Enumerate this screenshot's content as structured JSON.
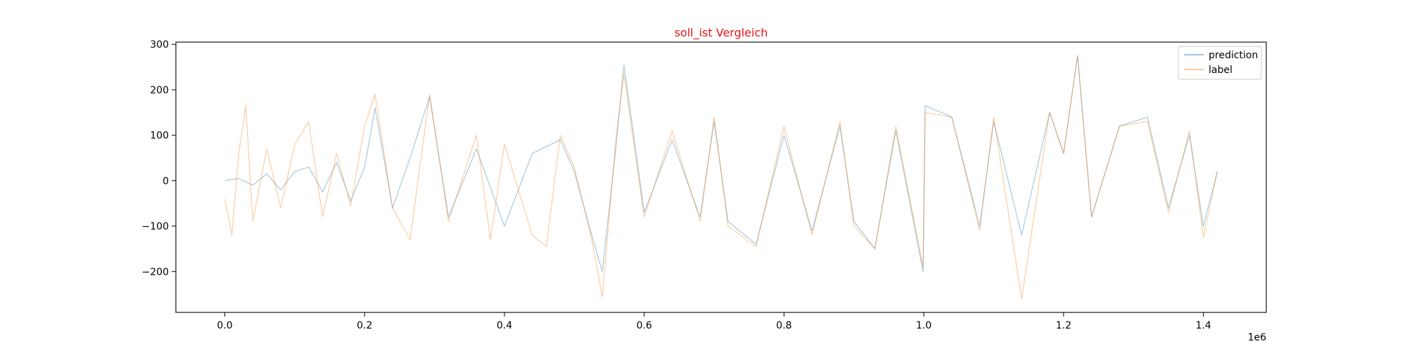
{
  "chart_data": {
    "type": "line",
    "title": "soll_ist Vergleich",
    "title_color": "#e8141b",
    "xlabel": "",
    "ylabel": "",
    "x_offset_label": "1e6",
    "xlim": [
      -0.07,
      1.49
    ],
    "ylim": [
      -290,
      305
    ],
    "xticks": [
      0.0,
      0.2,
      0.4,
      0.6,
      0.8,
      1.0,
      1.2,
      1.4
    ],
    "xtick_labels": [
      "0.0",
      "0.2",
      "0.4",
      "0.6",
      "0.8",
      "1.0",
      "1.2",
      "1.4"
    ],
    "yticks": [
      -200,
      -100,
      0,
      100,
      200,
      300
    ],
    "ytick_labels": [
      "−200",
      "−100",
      "0",
      "100",
      "200",
      "300"
    ],
    "grid": false,
    "legend": {
      "position": "upper-right",
      "entries": [
        "prediction",
        "label"
      ]
    },
    "series": [
      {
        "name": "prediction",
        "color": "#1f77b4",
        "opacity": 0.4,
        "x": [
          0.0,
          0.02,
          0.04,
          0.06,
          0.08,
          0.1,
          0.12,
          0.14,
          0.16,
          0.18,
          0.2,
          0.215,
          0.24,
          0.265,
          0.293,
          0.32,
          0.36,
          0.4,
          0.44,
          0.48,
          0.5,
          0.525,
          0.54,
          0.56,
          0.571,
          0.6,
          0.64,
          0.68,
          0.7,
          0.72,
          0.76,
          0.8,
          0.84,
          0.88,
          0.9,
          0.93,
          0.96,
          0.999,
          1.002,
          1.04,
          1.08,
          1.1,
          1.14,
          1.18,
          1.2,
          1.22,
          1.24,
          1.28,
          1.32,
          1.35,
          1.38,
          1.4,
          1.42
        ],
        "y": [
          0,
          5,
          -10,
          15,
          -20,
          20,
          30,
          -25,
          40,
          -45,
          30,
          160,
          -60,
          50,
          185,
          -80,
          70,
          -100,
          60,
          90,
          20,
          -120,
          -200,
          80,
          255,
          -70,
          90,
          -80,
          130,
          -90,
          -140,
          100,
          -110,
          120,
          -90,
          -150,
          110,
          -200,
          165,
          140,
          -100,
          130,
          -120,
          150,
          60,
          275,
          -80,
          120,
          140,
          -60,
          100,
          -100,
          20
        ]
      },
      {
        "name": "label",
        "color": "#ff7f0e",
        "opacity": 0.4,
        "x": [
          0.0,
          0.01,
          0.02,
          0.03,
          0.04,
          0.06,
          0.08,
          0.1,
          0.12,
          0.14,
          0.16,
          0.18,
          0.2,
          0.215,
          0.24,
          0.265,
          0.293,
          0.32,
          0.36,
          0.38,
          0.4,
          0.44,
          0.46,
          0.48,
          0.5,
          0.525,
          0.54,
          0.56,
          0.571,
          0.6,
          0.64,
          0.68,
          0.7,
          0.72,
          0.76,
          0.8,
          0.84,
          0.88,
          0.9,
          0.93,
          0.96,
          0.999,
          1.002,
          1.04,
          1.08,
          1.1,
          1.14,
          1.18,
          1.2,
          1.22,
          1.24,
          1.28,
          1.32,
          1.35,
          1.38,
          1.4,
          1.42
        ],
        "y": [
          -40,
          -120,
          60,
          165,
          -90,
          70,
          -60,
          80,
          130,
          -80,
          60,
          -55,
          120,
          190,
          -60,
          -130,
          190,
          -90,
          100,
          -130,
          80,
          -120,
          -145,
          100,
          30,
          -130,
          -255,
          100,
          235,
          -80,
          110,
          -90,
          140,
          -100,
          -145,
          120,
          -120,
          130,
          -100,
          -150,
          120,
          -190,
          150,
          140,
          -110,
          140,
          -260,
          150,
          60,
          275,
          -80,
          120,
          130,
          -70,
          110,
          -125,
          20
        ]
      }
    ]
  }
}
